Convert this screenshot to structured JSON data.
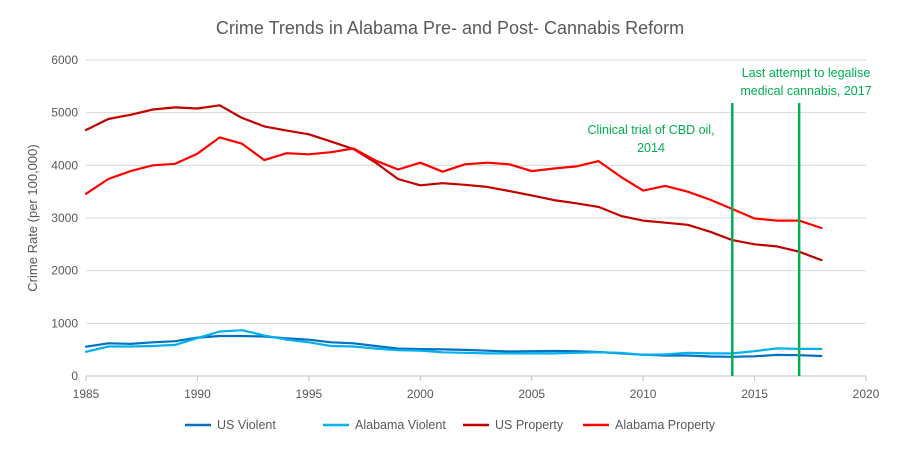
{
  "chart_data": {
    "type": "line",
    "title": "Crime Trends in Alabama Pre- and Post- Cannabis Reform",
    "xlabel": "",
    "ylabel": "Crime Rate (per 100,000)",
    "xlim": [
      1985,
      2020
    ],
    "ylim": [
      0,
      6000
    ],
    "xticks": [
      1985,
      1990,
      1995,
      2000,
      2005,
      2010,
      2015,
      2020
    ],
    "yticks": [
      0,
      1000,
      2000,
      3000,
      4000,
      5000,
      6000
    ],
    "xtick_labels": [
      "1985",
      "1990",
      "1995",
      "2000",
      "2005",
      "2010",
      "2015",
      "2020"
    ],
    "ytick_labels": [
      "0",
      "1000",
      "2000",
      "3000",
      "4000",
      "5000",
      "6000"
    ],
    "grid": "horizontal",
    "legend_position": "bottom",
    "x": [
      1985,
      1986,
      1987,
      1988,
      1989,
      1990,
      1991,
      1992,
      1993,
      1994,
      1995,
      1996,
      1997,
      1998,
      1999,
      2000,
      2001,
      2002,
      2003,
      2004,
      2005,
      2006,
      2007,
      2008,
      2009,
      2010,
      2011,
      2012,
      2013,
      2014,
      2015,
      2016,
      2017,
      2018
    ],
    "series": [
      {
        "name": "US Violent",
        "color": "#0070C0",
        "values": [
          556,
          620,
          610,
          640,
          660,
          730,
          760,
          760,
          750,
          715,
          690,
          640,
          620,
          570,
          520,
          510,
          505,
          495,
          480,
          465,
          470,
          475,
          470,
          455,
          430,
          405,
          390,
          390,
          370,
          365,
          375,
          400,
          395,
          380
        ]
      },
      {
        "name": "Alabama Violent",
        "color": "#00B0F0",
        "values": [
          460,
          560,
          560,
          570,
          590,
          720,
          845,
          870,
          770,
          690,
          640,
          570,
          560,
          520,
          490,
          480,
          450,
          440,
          430,
          430,
          430,
          430,
          440,
          450,
          440,
          400,
          410,
          440,
          430,
          430,
          470,
          525,
          515,
          515
        ]
      },
      {
        "name": "US Property",
        "color": "#C00000",
        "values": [
          4670,
          4880,
          4960,
          5060,
          5100,
          5080,
          5140,
          4900,
          4740,
          4660,
          4590,
          4450,
          4310,
          4050,
          3740,
          3620,
          3660,
          3630,
          3590,
          3510,
          3430,
          3340,
          3280,
          3210,
          3040,
          2950,
          2910,
          2870,
          2740,
          2580,
          2500,
          2460,
          2360,
          2200
        ]
      },
      {
        "name": "Alabama Property",
        "color": "#FF0000",
        "values": [
          3460,
          3740,
          3890,
          4000,
          4030,
          4220,
          4530,
          4410,
          4100,
          4230,
          4210,
          4250,
          4320,
          4090,
          3920,
          4050,
          3880,
          4020,
          4050,
          4020,
          3890,
          3940,
          3980,
          4080,
          3780,
          3520,
          3610,
          3500,
          3350,
          3170,
          2990,
          2950,
          2950,
          2810
        ]
      }
    ],
    "annotations": [
      {
        "x": 2014,
        "color": "#00B050",
        "lines": [
          "Clinical trial of CBD oil,",
          "2014"
        ]
      },
      {
        "x": 2017,
        "color": "#00B050",
        "lines": [
          "Last attempt to legalise",
          "medical cannabis, 2017"
        ]
      }
    ]
  }
}
